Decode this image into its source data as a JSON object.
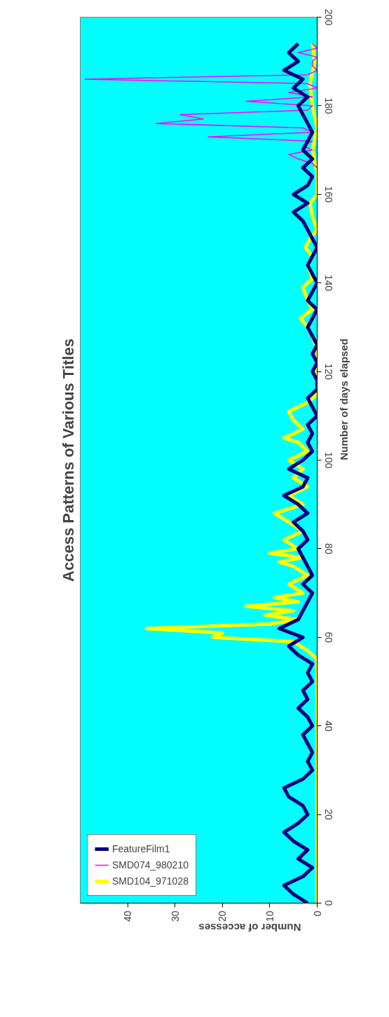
{
  "chart_data": {
    "type": "line",
    "orientation": "horizontal",
    "title": "Access Patterns of Various Titles",
    "xlabel": "Number of accesses",
    "ylabel": "Number of days elapsed",
    "xlim": [
      50,
      0
    ],
    "xticks": [
      0,
      10,
      20,
      30,
      40
    ],
    "ylim": [
      0,
      200
    ],
    "yticks": [
      0,
      20,
      40,
      60,
      80,
      100,
      120,
      140,
      160,
      180,
      200
    ],
    "grid": false,
    "legend": "bottom left",
    "marker": "none",
    "line_style": "solid",
    "series": [
      {
        "name": "FeatureFilm1",
        "color": "#000080",
        "x": [
          0,
          2,
          4,
          6,
          8,
          10,
          12,
          14,
          16,
          18,
          20,
          22,
          24,
          26,
          28,
          30,
          32,
          34,
          36,
          38,
          40,
          42,
          44,
          46,
          48,
          50,
          52,
          54,
          56,
          58,
          60,
          62,
          64,
          66,
          68,
          70,
          72,
          74,
          76,
          78,
          80,
          82,
          84,
          86,
          88,
          90,
          92,
          94,
          96,
          98,
          100,
          102,
          104,
          106,
          108,
          110,
          112,
          114,
          116,
          118,
          120,
          122,
          124,
          126,
          128,
          130,
          132,
          134,
          136,
          138,
          140,
          142,
          144,
          146,
          148,
          150,
          152,
          154,
          156,
          158,
          160,
          162,
          164,
          166,
          168,
          170,
          172,
          174,
          176,
          178,
          180,
          182,
          184,
          186,
          188,
          190,
          192,
          194
        ],
        "values": [
          2,
          5,
          7,
          3,
          1,
          4,
          2,
          5,
          7,
          4,
          2,
          3,
          6,
          7,
          3,
          1,
          2,
          1,
          2,
          3,
          1,
          2,
          4,
          2,
          3,
          1,
          2,
          1,
          4,
          6,
          3,
          8,
          4,
          3,
          2,
          1,
          3,
          1,
          2,
          3,
          4,
          2,
          3,
          5,
          2,
          4,
          7,
          3,
          2,
          6,
          3,
          1,
          2,
          1,
          2,
          0,
          1,
          2,
          0,
          0,
          1,
          0,
          1,
          0,
          1,
          2,
          1,
          0,
          2,
          1,
          0,
          1,
          2,
          1,
          0,
          1,
          2,
          3,
          5,
          2,
          5,
          2,
          1,
          3,
          1,
          3,
          2,
          1,
          2,
          3,
          4,
          2,
          5,
          3,
          7,
          4,
          6,
          4
        ]
      },
      {
        "name": "SMD074_980210",
        "color": "#ff00ff",
        "x": [
          166,
          167,
          168,
          169,
          170,
          171,
          172,
          173,
          174,
          175,
          176,
          177,
          178,
          179,
          180,
          181,
          182,
          183,
          184,
          185,
          186,
          187,
          188,
          189,
          190,
          191,
          192,
          193,
          194
        ],
        "values": [
          0,
          1,
          4,
          6,
          1,
          3,
          1,
          23,
          1,
          3,
          34,
          24,
          29,
          2,
          1,
          15,
          1,
          6,
          0,
          2,
          49,
          2,
          0,
          1,
          1,
          0,
          4,
          0,
          1
        ]
      },
      {
        "name": "SMD104_971028",
        "color": "#ffff00",
        "x": [
          0,
          10,
          20,
          30,
          40,
          50,
          55,
          57,
          59,
          60,
          61,
          62,
          63,
          64,
          65,
          66,
          67,
          68,
          69,
          70,
          72,
          74,
          76,
          77,
          78,
          79,
          80,
          82,
          84,
          86,
          88,
          90,
          92,
          94,
          96,
          98,
          100,
          102,
          104,
          105,
          107,
          109,
          111,
          113,
          115,
          120,
          125,
          128,
          130,
          132,
          134,
          136,
          139,
          141,
          144,
          146,
          148,
          150,
          152,
          155,
          158,
          160,
          165,
          170,
          175,
          180,
          185,
          190,
          194
        ],
        "values": [
          0,
          0,
          0,
          0,
          0,
          0,
          0,
          2,
          5,
          22,
          20,
          36,
          10,
          4,
          11,
          5,
          15,
          4,
          9,
          3,
          6,
          2,
          5,
          8,
          3,
          10,
          4,
          7,
          3,
          6,
          9,
          3,
          6,
          2,
          5,
          3,
          6,
          2,
          4,
          7,
          3,
          5,
          6,
          2,
          0,
          0,
          0,
          1,
          2,
          3.5,
          1,
          2,
          3,
          1,
          2,
          1,
          2.5,
          1.5,
          0,
          1,
          1.5,
          0,
          0,
          1,
          0,
          1,
          1.5,
          0.5,
          1
        ]
      }
    ]
  }
}
